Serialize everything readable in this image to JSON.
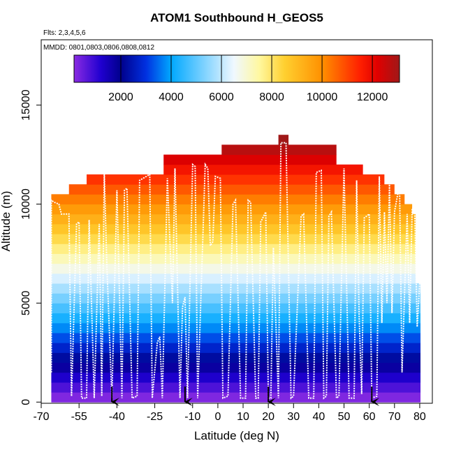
{
  "chart_data": {
    "type": "curtain",
    "title": "ATOM1 Southbound H_GEOS5",
    "subtitle": "Flts: 2,3,4,5,6",
    "annotation": "MMDD: 0801,0803,0806,0808,0812",
    "x_label": "Latitude (deg N)",
    "y_label": "Altitude (m)",
    "xlim": [
      -70,
      85
    ],
    "xticks": [
      -70,
      -55,
      -40,
      -25,
      -10,
      0,
      10,
      20,
      30,
      40,
      50,
      60,
      70,
      80
    ],
    "ylim": [
      -60,
      18300
    ],
    "yticks": [
      0,
      5000,
      10000,
      15000
    ],
    "colorbar_lim": [
      140,
      13080
    ],
    "colorbar_ticks": [
      2000,
      4000,
      6000,
      8000,
      10000,
      12000
    ],
    "colorscale": [
      [
        140,
        "#8a2be2"
      ],
      [
        1200,
        "#2000d0"
      ],
      [
        2000,
        "#00008c"
      ],
      [
        3000,
        "#0030e0"
      ],
      [
        4000,
        "#00a8ff"
      ],
      [
        5000,
        "#60c8ff"
      ],
      [
        6500,
        "#f0f8ff"
      ],
      [
        7500,
        "#fff8a0"
      ],
      [
        8500,
        "#ffd030"
      ],
      [
        10000,
        "#ff9000"
      ],
      [
        11500,
        "#ff2000"
      ],
      [
        12200,
        "#e00000"
      ],
      [
        13080,
        "#a01818"
      ]
    ],
    "cells": {
      "altitude_bins": [
        0,
        500,
        1000,
        1500,
        2000,
        2500,
        3000,
        3500,
        4000,
        4500,
        5000,
        5500,
        6000,
        6500,
        7000,
        7500,
        8000,
        8500,
        9000,
        9500,
        10000,
        10500,
        11000,
        11500,
        12000,
        12500,
        13000,
        13500
      ],
      "lat_min": [
        -66,
        -66,
        -66,
        -66,
        -66,
        -66,
        -66,
        -66,
        -66,
        -66,
        -66,
        -66,
        -66,
        -66,
        -66,
        -66,
        -66,
        -66,
        -66,
        -66,
        -66,
        -59,
        -52,
        -21.5,
        -21.5,
        1.5,
        24
      ],
      "lat_max": [
        80.3,
        80.3,
        80.3,
        80.3,
        80.3,
        80.3,
        80.3,
        80.3,
        80.3,
        80.3,
        80.3,
        80.3,
        78.4,
        78.4,
        78.4,
        78.4,
        78.4,
        78.4,
        78.4,
        77,
        74,
        70,
        66,
        57.5,
        47,
        47,
        28
      ]
    },
    "track": {
      "color": "#ffffff",
      "x": [
        -66,
        -66,
        -65,
        -63,
        -62,
        -59,
        -58,
        -56,
        -55,
        -54,
        -52,
        -51,
        -49,
        -47,
        -46,
        -45,
        -44,
        -42,
        -40,
        -38,
        -37,
        -36,
        -34,
        -32,
        -31,
        -27,
        -26,
        -24,
        -23,
        -22,
        -20,
        -18,
        -17,
        -15,
        -14,
        -13,
        -12,
        -10,
        -9,
        -8,
        -5,
        -4,
        -3,
        -2,
        -1,
        1,
        2,
        4,
        6,
        7,
        9,
        11,
        12,
        13,
        15,
        16,
        17,
        19,
        20,
        21,
        22,
        24,
        25,
        27,
        29,
        30,
        33,
        34,
        36,
        38,
        39,
        41,
        42,
        43,
        44,
        45,
        47,
        48,
        50,
        52,
        54,
        55,
        56,
        57,
        58,
        60,
        61,
        63,
        64,
        65,
        66,
        67,
        68,
        69,
        70,
        72,
        73,
        75,
        76,
        77,
        78,
        79,
        80
      ],
      "values": [
        1500,
        10200,
        10100,
        10000,
        9500,
        9500,
        300,
        9000,
        9100,
        200,
        200,
        9200,
        200,
        9000,
        300,
        11600,
        7000,
        200,
        10700,
        200,
        10700,
        10800,
        200,
        300,
        11200,
        11500,
        200,
        3000,
        3300,
        200,
        11300,
        5000,
        11800,
        200,
        4800,
        5300,
        200,
        12000,
        11900,
        200,
        12000,
        11800,
        7900,
        8100,
        11400,
        11300,
        200,
        300,
        10000,
        10200,
        200,
        200,
        10200,
        10100,
        200,
        200,
        9100,
        9600,
        200,
        200,
        7800,
        200,
        13100,
        13100,
        200,
        300,
        9400,
        9500,
        200,
        200,
        11600,
        11700,
        200,
        300,
        9400,
        9600,
        200,
        300,
        11800,
        200,
        200,
        11200,
        4300,
        400,
        9300,
        9500,
        200,
        300,
        11400,
        4000,
        9600,
        5000,
        11000,
        4500,
        9600,
        11000,
        1500,
        9500,
        4000,
        9800,
        9800,
        3800,
        6000
      ]
    },
    "arrow_x": [
      -42,
      -13,
      20,
      61
    ]
  }
}
